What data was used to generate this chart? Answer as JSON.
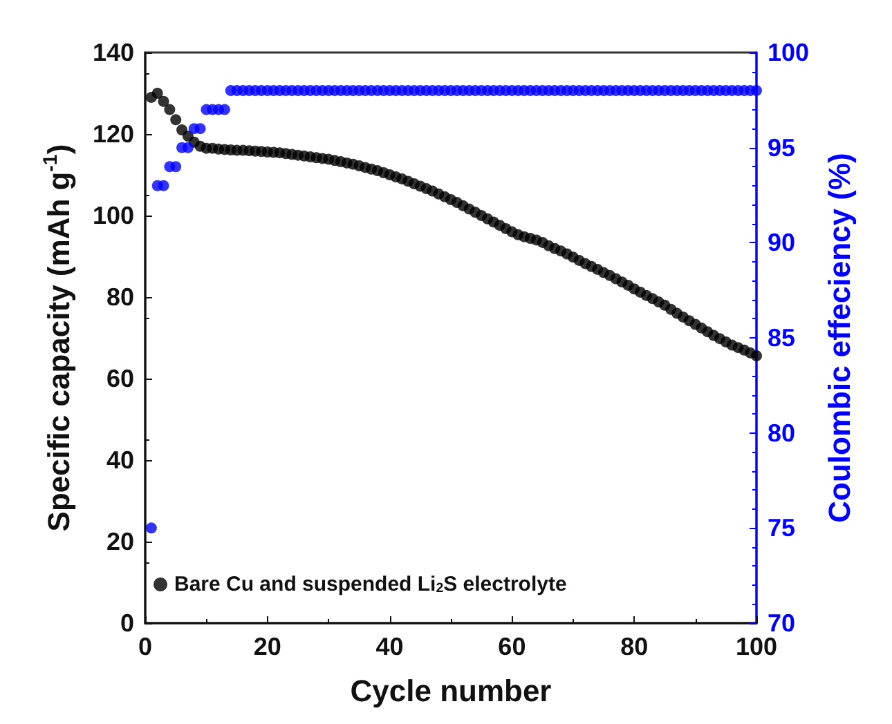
{
  "chart_data": {
    "type": "scatter",
    "xlabel": "Cycle number",
    "ylabel": "Specific capacity (mAh g$^{-1}$)",
    "y2label": "Coulombic effeciency (%)",
    "x": [
      1,
      2,
      3,
      4,
      5,
      6,
      7,
      8,
      9,
      10,
      11,
      12,
      13,
      14,
      15,
      16,
      17,
      18,
      19,
      20,
      21,
      22,
      23,
      24,
      25,
      26,
      27,
      28,
      29,
      30,
      31,
      32,
      33,
      34,
      35,
      36,
      37,
      38,
      39,
      40,
      41,
      42,
      43,
      44,
      45,
      46,
      47,
      48,
      49,
      50,
      51,
      52,
      53,
      54,
      55,
      56,
      57,
      58,
      59,
      60,
      61,
      62,
      63,
      64,
      65,
      66,
      67,
      68,
      69,
      70,
      71,
      72,
      73,
      74,
      75,
      76,
      77,
      78,
      79,
      80,
      81,
      82,
      83,
      84,
      85,
      86,
      87,
      88,
      89,
      90,
      91,
      92,
      93,
      94,
      95,
      96,
      97,
      98,
      99,
      100
    ],
    "series": [
      {
        "name": "Bare Cu and suspended Li$_{2}$S electrolyte",
        "color": "#000000",
        "values": [
          129,
          130,
          128,
          126,
          123.5,
          121,
          119.5,
          118,
          117,
          116.5,
          116.5,
          116.3,
          116.2,
          116.1,
          116,
          116,
          115.9,
          115.8,
          115.7,
          115.6,
          115.5,
          115.4,
          115.2,
          115,
          114.8,
          114.6,
          114.4,
          114.2,
          114,
          113.8,
          113.5,
          113.2,
          112.9,
          112.6,
          112.2,
          111.8,
          111.4,
          111,
          110.5,
          110,
          109.5,
          109,
          108.4,
          107.8,
          107.2,
          106.6,
          106,
          105.3,
          104.6,
          103.9,
          103.2,
          102.4,
          101.6,
          100.8,
          100,
          99.2,
          98.4,
          97.6,
          96.8,
          96,
          95.3,
          94.8,
          94.4,
          94,
          93.4,
          92.6,
          91.9,
          91.3,
          90.6,
          89.8,
          89,
          88.2,
          87.5,
          86.8,
          86,
          85.3,
          84.5,
          83.7,
          82.9,
          82,
          81.2,
          80.4,
          79.6,
          78.8,
          78,
          77,
          76,
          75.1,
          74.2,
          73.3,
          72.4,
          71.5,
          70.6,
          69.8,
          69,
          68.2,
          67.6,
          67,
          66.3,
          65.6
        ]
      },
      {
        "color": "#0000ff",
        "axis": "y2",
        "values": [
          75,
          93,
          93,
          94,
          94,
          95,
          95,
          96,
          96,
          97,
          97,
          97,
          97,
          98,
          98,
          98,
          98,
          98,
          98,
          98,
          98,
          98,
          98,
          98,
          98,
          98,
          98,
          98,
          98,
          98,
          98,
          98,
          98,
          98,
          98,
          98,
          98,
          98,
          98,
          98,
          98,
          98,
          98,
          98,
          98,
          98,
          98,
          98,
          98,
          98,
          98,
          98,
          98,
          98,
          98,
          98,
          98,
          98,
          98,
          98,
          98,
          98,
          98,
          98,
          98,
          98,
          98,
          98,
          98,
          98,
          98,
          98,
          98,
          98,
          98,
          98,
          98,
          98,
          98,
          98,
          98,
          98,
          98,
          98,
          98,
          98,
          98,
          98,
          98,
          98,
          98,
          98,
          98,
          98,
          98,
          98,
          98,
          98,
          98,
          98
        ]
      }
    ],
    "xlim": [
      0,
      100
    ],
    "xticks": [
      0,
      20,
      40,
      60,
      80,
      100
    ],
    "ylim": [
      0,
      140
    ],
    "yticks": [
      0,
      20,
      40,
      60,
      80,
      100,
      120,
      140
    ],
    "y2lim": [
      70,
      100
    ],
    "y2ticks": [
      70,
      75,
      80,
      85,
      90,
      95,
      100
    ],
    "marker": "circle",
    "grid": false,
    "legend": "bottom left"
  }
}
